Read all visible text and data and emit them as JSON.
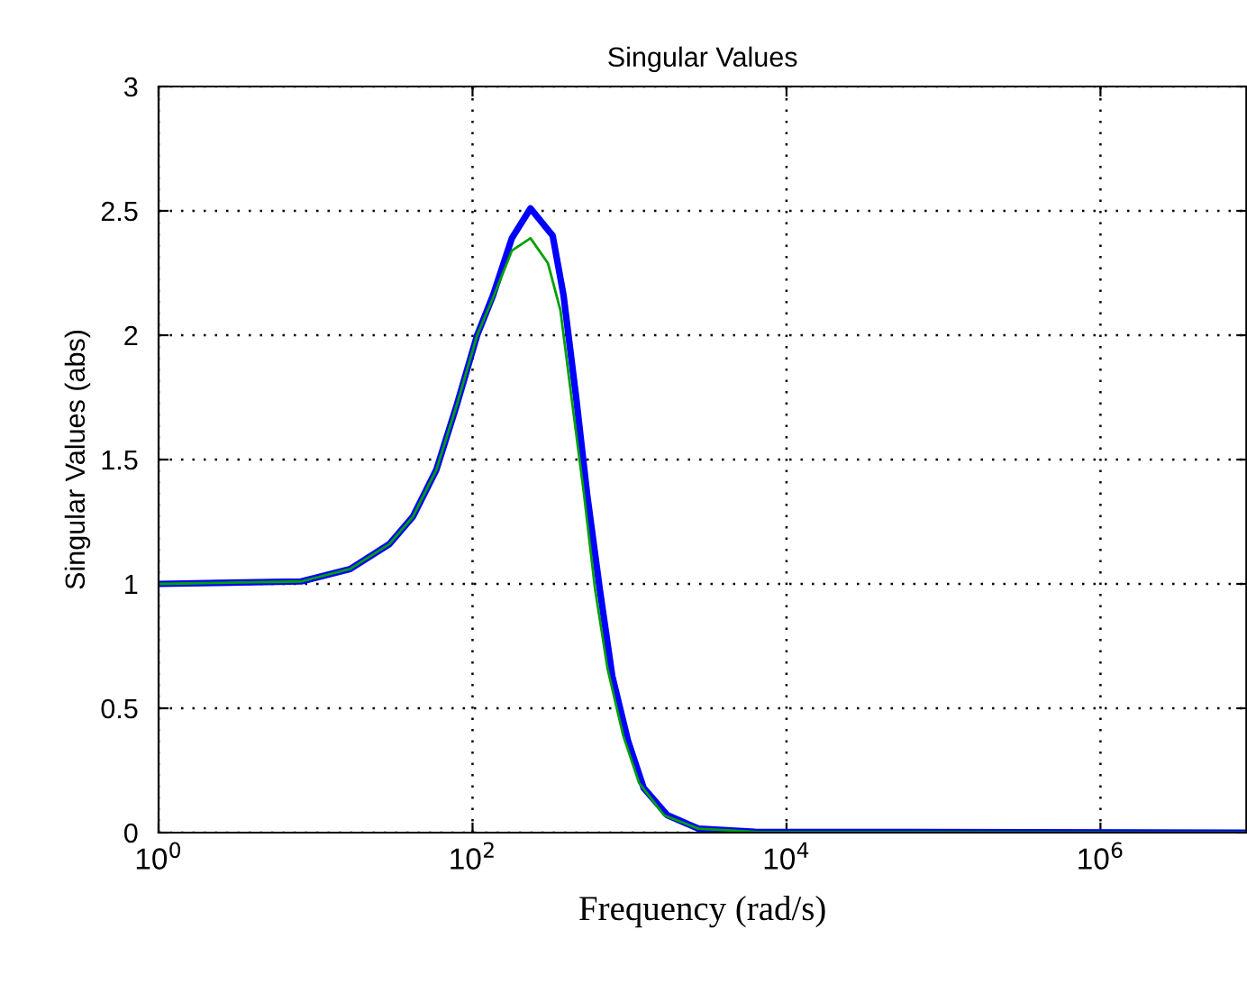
{
  "chart_data": {
    "type": "line",
    "title": "Singular Values",
    "xlabel": "Frequency (rad/s)",
    "ylabel": "Singular Values (abs)",
    "log": "x",
    "grid": true,
    "line_style": "solid",
    "xlim": [
      1,
      8500000
    ],
    "ylim": [
      0,
      3
    ],
    "xticks": [
      {
        "value": 1,
        "label": "10$^{0}$"
      },
      {
        "value": 100,
        "label": "10$^{2}$"
      },
      {
        "value": 10000,
        "label": "10$^{4}$"
      },
      {
        "value": 1000000,
        "label": "10$^{6}$"
      }
    ],
    "yticks": [
      0,
      0.5,
      1,
      1.5,
      2,
      2.5,
      3
    ],
    "series": [
      {
        "color": "#0000ff",
        "x": [
          1,
          8.1,
          16.6,
          29.5,
          41.7,
          58.9,
          79.4,
          107,
          135,
          178,
          234,
          324,
          380,
          457,
          537,
          646,
          776,
          977,
          1230,
          1740,
          2750,
          6310,
          8500000
        ],
        "values": [
          1.0,
          1.01,
          1.06,
          1.16,
          1.27,
          1.46,
          1.72,
          2.0,
          2.16,
          2.39,
          2.51,
          2.4,
          2.16,
          1.75,
          1.36,
          0.98,
          0.63,
          0.37,
          0.18,
          0.07,
          0.016,
          0.003,
          0.0
        ]
      },
      {
        "color": "#00a000",
        "x": [
          1,
          8.1,
          16.6,
          29.5,
          41.7,
          58.9,
          79.4,
          107,
          135,
          178,
          234,
          302,
          363,
          427,
          513,
          603,
          724,
          912,
          1150,
          1660,
          2750,
          6310,
          8500000
        ],
        "values": [
          1.0,
          1.01,
          1.06,
          1.16,
          1.27,
          1.46,
          1.72,
          2.0,
          2.15,
          2.34,
          2.39,
          2.29,
          2.1,
          1.75,
          1.36,
          0.98,
          0.66,
          0.39,
          0.2,
          0.07,
          0.016,
          0.003,
          0.0
        ]
      }
    ]
  }
}
